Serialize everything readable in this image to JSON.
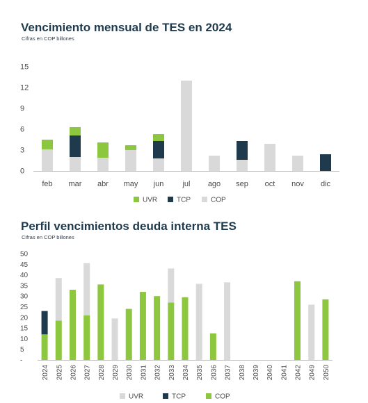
{
  "colors": {
    "UVR": "#8dc63f",
    "TCP": "#1f3a4d",
    "COP": "#d9d9d9",
    "axis_text": "#4a4a4a"
  },
  "chart_data": [
    {
      "type": "bar",
      "stacked": true,
      "title": "Vencimiento mensual de TES en 2024",
      "subtitle": "Cifras en COP billones",
      "categories": [
        "feb",
        "mar",
        "abr",
        "may",
        "jun",
        "jul",
        "ago",
        "sep",
        "oct",
        "nov",
        "dic"
      ],
      "series": [
        {
          "name": "COP",
          "values": [
            3.1,
            2.0,
            1.9,
            3.0,
            1.8,
            13.0,
            2.2,
            1.6,
            3.9,
            2.2,
            0
          ]
        },
        {
          "name": "TCP",
          "values": [
            0,
            3.1,
            0,
            0,
            2.5,
            0,
            0,
            2.7,
            0,
            0,
            2.4
          ]
        },
        {
          "name": "UVR",
          "values": [
            1.4,
            1.2,
            2.2,
            0.7,
            1.0,
            0,
            0,
            0,
            0,
            0,
            0
          ]
        }
      ],
      "stack_order": [
        "COP",
        "TCP",
        "UVR"
      ],
      "legend": [
        "UVR",
        "TCP",
        "COP"
      ],
      "legend_position": "bottom",
      "yticks": [
        0,
        3,
        6,
        9,
        12,
        15
      ],
      "ylim": [
        0,
        15
      ],
      "grid": false
    },
    {
      "type": "bar",
      "stacked": true,
      "title": "Perfil vencimientos deuda interna TES",
      "subtitle": "Cifras en COP billones",
      "categories": [
        "2024",
        "2025",
        "2026",
        "2027",
        "2028",
        "2029",
        "2030",
        "2031",
        "2032",
        "2033",
        "2034",
        "2035",
        "2036",
        "2037",
        "2038",
        "2039",
        "2040",
        "2041",
        "2042",
        "2049",
        "2050"
      ],
      "series": [
        {
          "name": "COP",
          "values": [
            12,
            18.5,
            33,
            21,
            35.5,
            0,
            24,
            32,
            30,
            27,
            29.5,
            0,
            12.5,
            0,
            0,
            0,
            0,
            0,
            37,
            0,
            28.5
          ]
        },
        {
          "name": "TCP",
          "values": [
            11,
            0,
            0,
            0,
            0,
            0,
            0,
            0,
            0,
            0,
            0,
            0,
            0,
            0,
            0,
            0,
            0,
            0,
            0,
            0,
            0
          ]
        },
        {
          "name": "UVR",
          "values": [
            0,
            20,
            0,
            24.5,
            0,
            19.5,
            0,
            0,
            0,
            16,
            0,
            35.8,
            0,
            36.5,
            0,
            0,
            0,
            0,
            0,
            26,
            0
          ]
        }
      ],
      "series_colors": {
        "COP": "#8dc63f",
        "TCP": "#1f3a4d",
        "UVR": "#d9d9d9"
      },
      "stack_order": [
        "COP",
        "TCP",
        "UVR"
      ],
      "legend": [
        "UVR",
        "TCP",
        "COP"
      ],
      "legend_position": "bottom",
      "yticks": [
        0,
        5,
        10,
        15,
        20,
        25,
        30,
        35,
        40,
        45,
        50
      ],
      "ytick_labels": [
        "-",
        "5",
        "10",
        "15",
        "20",
        "25",
        "30",
        "35",
        "40",
        "45",
        "50"
      ],
      "ylim": [
        0,
        50
      ],
      "grid": false
    }
  ]
}
